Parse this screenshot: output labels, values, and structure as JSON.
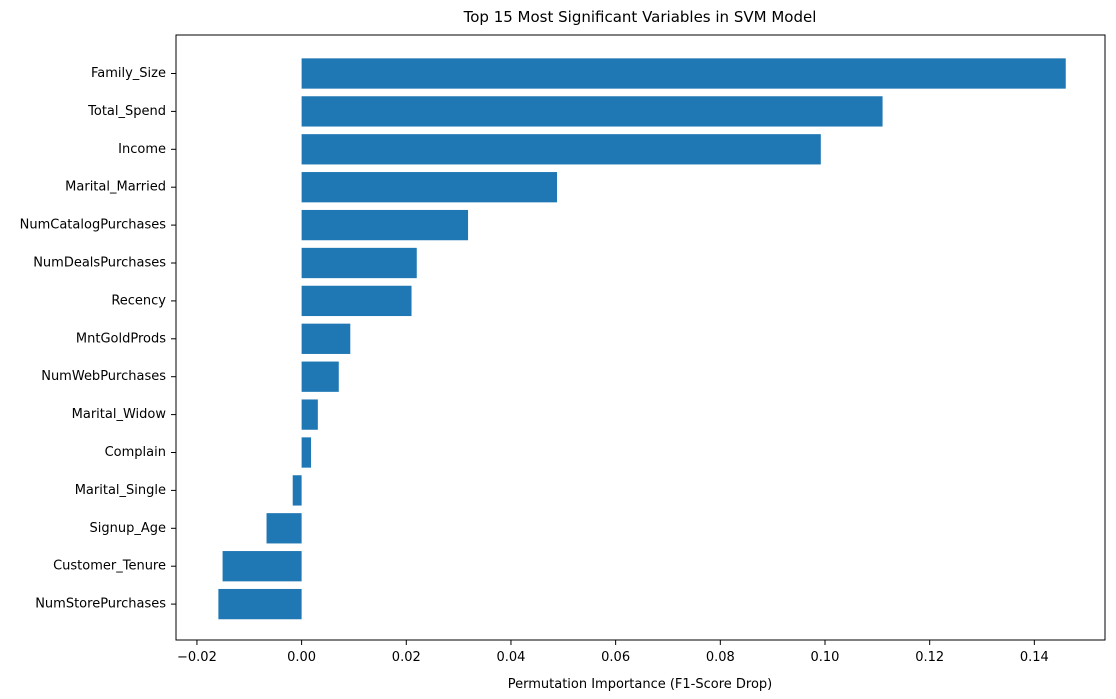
{
  "chart_data": {
    "type": "bar",
    "orientation": "horizontal",
    "title": "Top 15 Most Significant Variables in SVM Model",
    "xlabel": "Permutation Importance (F1-Score Drop)",
    "ylabel": "",
    "xlim": [
      -0.024,
      0.1535
    ],
    "xticks": [
      -0.02,
      0.0,
      0.02,
      0.04,
      0.06,
      0.08,
      0.1,
      0.12,
      0.14
    ],
    "xtick_labels": [
      "−0.02",
      "0.00",
      "0.02",
      "0.04",
      "0.06",
      "0.08",
      "0.10",
      "0.12",
      "0.14"
    ],
    "bar_color": "#1f77b4",
    "grid": false,
    "categories": [
      "Family_Size",
      "Total_Spend",
      "Income",
      "Marital_Married",
      "NumCatalogPurchases",
      "NumDealsPurchases",
      "Recency",
      "MntGoldProds",
      "NumWebPurchases",
      "Marital_Widow",
      "Complain",
      "Marital_Single",
      "Signup_Age",
      "Customer_Tenure",
      "NumStorePurchases"
    ],
    "values": [
      0.146,
      0.111,
      0.0992,
      0.0488,
      0.0318,
      0.022,
      0.021,
      0.0093,
      0.0071,
      0.0031,
      0.0018,
      -0.0017,
      -0.0067,
      -0.0151,
      -0.0159
    ]
  }
}
